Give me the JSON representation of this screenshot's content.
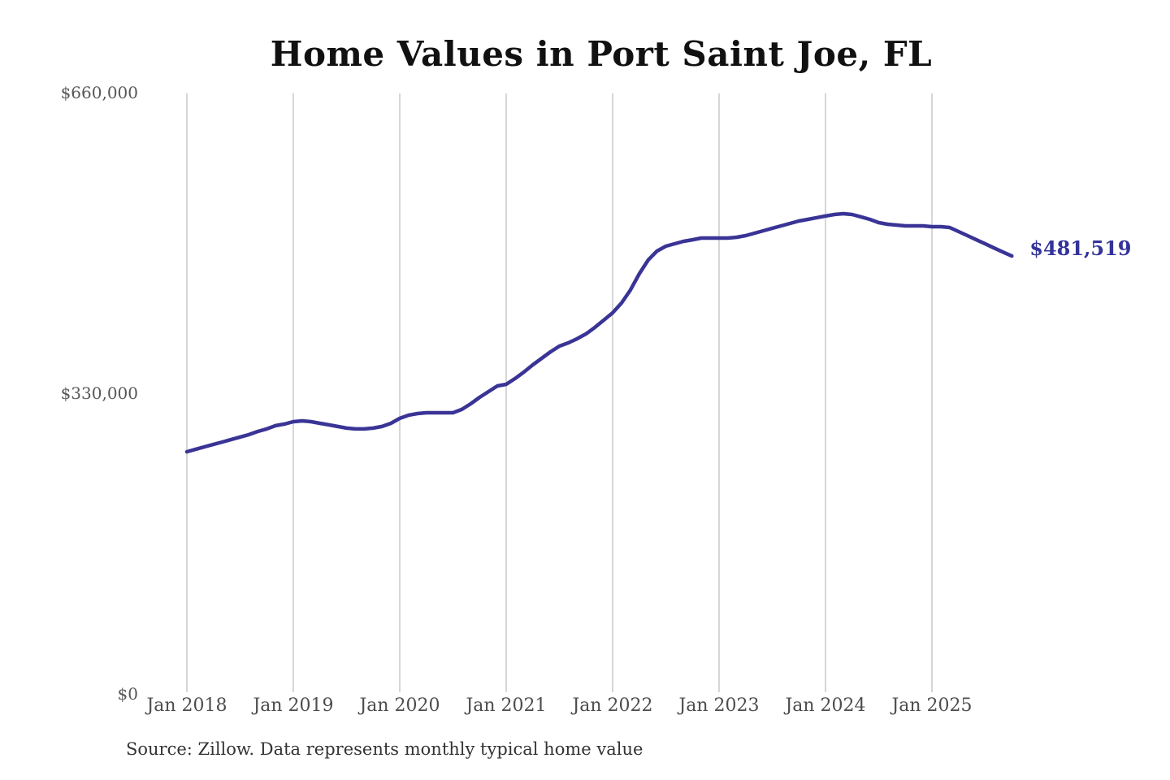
{
  "title": "Home Values in Port Saint Joe, FL",
  "source_note": "Source: Zillow. Data represents monthly typical home value",
  "current_value_label": "$481,519",
  "colors": {
    "line": "#3a3496",
    "end_label": "#33339b",
    "grid": "#c9c9c9",
    "axis_text": "#575757",
    "title_text": "#111111",
    "source_text": "#333333"
  },
  "y_axis": {
    "ticks": [
      {
        "label": "$660,000",
        "value": 660000
      },
      {
        "label": "$330,000",
        "value": 330000
      },
      {
        "label": "$0",
        "value": 0
      }
    ]
  },
  "x_axis": {
    "labels": [
      "Jan 2018",
      "Jan 2019",
      "Jan 2020",
      "Jan 2021",
      "Jan 2022",
      "Jan 2023",
      "Jan 2024",
      "Jan 2025"
    ]
  },
  "chart_data": {
    "type": "line",
    "title": "Home Values in Port Saint Joe, FL",
    "series_name": "Monthly typical home value (Zillow)",
    "x_start_month": "2018-01",
    "x_end_month": "2025-10",
    "months_per_point": 1,
    "ylim": [
      0,
      660000
    ],
    "y_tick_values": [
      0,
      330000,
      660000
    ],
    "grid": "vertical-yearly",
    "legend": "none",
    "final_value": 481519,
    "values": [
      266700,
      269400,
      272100,
      274800,
      277400,
      280100,
      282800,
      285500,
      289000,
      291700,
      295300,
      297100,
      299700,
      300600,
      299700,
      297900,
      296200,
      294400,
      292600,
      291700,
      291700,
      292600,
      294400,
      297900,
      303300,
      306800,
      308600,
      309500,
      309500,
      309500,
      309500,
      313100,
      319300,
      326400,
      332700,
      338900,
      340700,
      347000,
      354200,
      362100,
      369200,
      376400,
      382600,
      386200,
      390700,
      396100,
      403200,
      411200,
      419200,
      429900,
      444100,
      462000,
      477100,
      487000,
      492300,
      495000,
      497700,
      499400,
      501200,
      501200,
      501200,
      501200,
      502100,
      503900,
      506600,
      509300,
      512000,
      514600,
      517300,
      520000,
      521800,
      523600,
      525400,
      527100,
      528000,
      527100,
      524500,
      521800,
      518200,
      516400,
      515500,
      514600,
      514600,
      514600,
      513700,
      513700,
      512800,
      508400,
      503900,
      499400,
      494900,
      490400,
      485900,
      481519
    ]
  }
}
